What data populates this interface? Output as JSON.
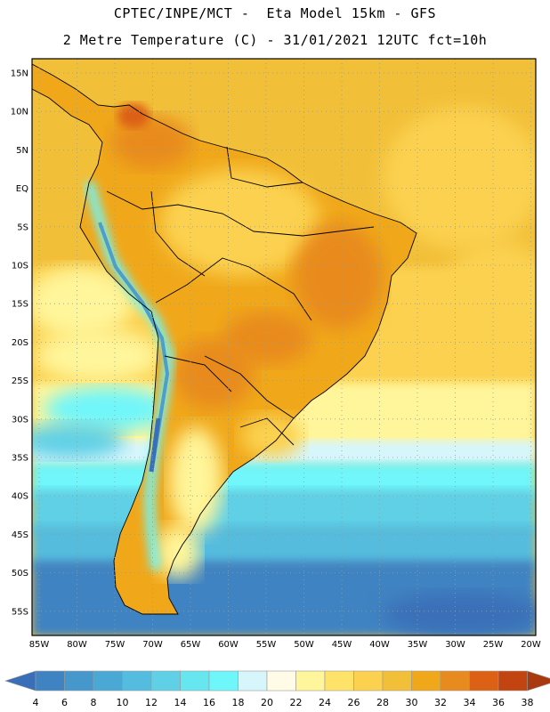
{
  "header": {
    "line1": "CPTEC/INPE/MCT -  Eta Model 15km - GFS",
    "line2": "2 Metre Temperature (C) - 31/01/2021 12UTC fct=10h"
  },
  "map": {
    "lat_labels": [
      "15N",
      "10N",
      "5N",
      "EQ",
      "5S",
      "10S",
      "15S",
      "20S",
      "25S",
      "30S",
      "35S",
      "40S",
      "45S",
      "50S",
      "55S"
    ],
    "lon_labels": [
      "85W",
      "80W",
      "75W",
      "70W",
      "65W",
      "60W",
      "55W",
      "50W",
      "45W",
      "40W",
      "35W",
      "30W",
      "25W",
      "20W"
    ],
    "lat_range": [
      15,
      -55
    ],
    "lon_range": [
      -85,
      -20
    ],
    "grid": "dotted"
  },
  "colorbar": {
    "labels": [
      "4",
      "6",
      "8",
      "10",
      "12",
      "14",
      "16",
      "18",
      "20",
      "22",
      "24",
      "26",
      "28",
      "30",
      "32",
      "34",
      "36",
      "38"
    ],
    "colors": [
      "#3a6fb8",
      "#3f83c2",
      "#4597cc",
      "#4aa8d5",
      "#54bcde",
      "#5fd0e6",
      "#66e7f0",
      "#6ff6fb",
      "#d6f6fb",
      "#fffbe6",
      "#fff59a",
      "#ffe267",
      "#fbd14f",
      "#f2bf38",
      "#f0a81a",
      "#e88b1f",
      "#dc6114",
      "#c24410",
      "#a93a10"
    ]
  }
}
